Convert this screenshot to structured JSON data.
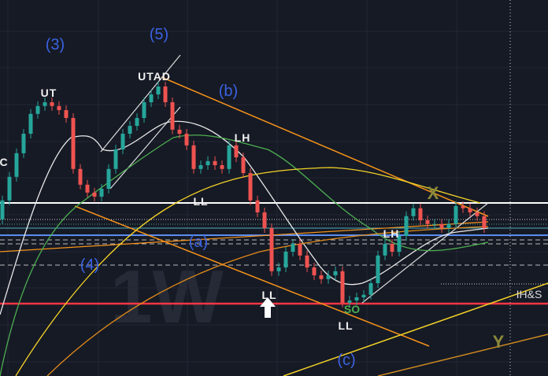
{
  "chart_data": {
    "type": "candlestick",
    "title": "",
    "timeframe_watermark": "1W",
    "closes": [
      55.8,
      63.3,
      70.8,
      77,
      83.3,
      85.8,
      87,
      85.8,
      84.5,
      82,
      65.8,
      60.8,
      58.3,
      57,
      59.5,
      65.8,
      72,
      77,
      79.5,
      82,
      87,
      89.5,
      92,
      87,
      78.3,
      77,
      73.3,
      65.8,
      67,
      68.3,
      67,
      65.8,
      73.3,
      69.5,
      64.5,
      55.8,
      52,
      47,
      33.3,
      34.5,
      39.5,
      42,
      38.3,
      34.5,
      32,
      30.8,
      32,
      33.3,
      23.3,
      24,
      25,
      25.8,
      29.5,
      38.3,
      42,
      39.5,
      44.5,
      50.8,
      53.3,
      49.5,
      48.3,
      48.3,
      47,
      48.3,
      54,
      53.3,
      52,
      50.8,
      47
    ],
    "colors": {
      "up": "#26a69a",
      "down": "#ef5350",
      "background": "#161a25",
      "wave_label": "#3b62e0",
      "support": "#f23645",
      "resistance": "#ffffff",
      "trendline": "#f7931a",
      "ma_fast": "#e8e8e8",
      "ma_mid": "#4caf50",
      "ma_slow": "#f5d327"
    },
    "annotations": {
      "w3": "(3)",
      "w4": "(4)",
      "w5": "(5)",
      "wa": "(a)",
      "wb": "(b)",
      "wc": "(c)",
      "ut": "UT",
      "utad": "UTAD",
      "lh1": "LH",
      "lh2": "LH",
      "ll1": "LL",
      "ll2": "LL",
      "ll3": "LL",
      "so": "SO",
      "x": "X",
      "y": "Y",
      "ihs": "IH&S",
      "c_left": "C"
    }
  }
}
